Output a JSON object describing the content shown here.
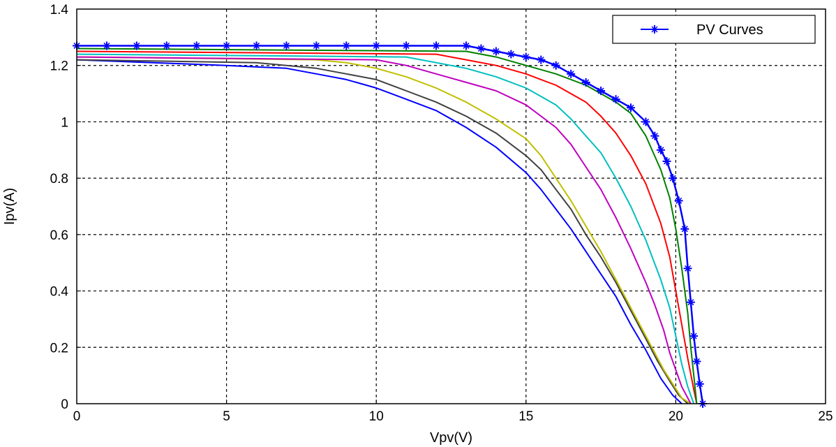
{
  "chart_data": {
    "type": "line",
    "title": "",
    "xlabel": "Vpv(V)",
    "ylabel": "Ipv(A)",
    "xlim": [
      0,
      25
    ],
    "ylim": [
      0,
      1.4
    ],
    "xticks": [
      "0",
      "5",
      "10",
      "15",
      "20",
      "25"
    ],
    "yticks": [
      "0",
      "0.2",
      "0.4",
      "0.6",
      "0.8",
      "1",
      "1.2",
      "1.4"
    ],
    "xtick_values": [
      0,
      5,
      10,
      15,
      20,
      25
    ],
    "ytick_values": [
      0,
      0.2,
      0.4,
      0.6,
      0.8,
      1.0,
      1.2,
      1.4
    ],
    "grid": true,
    "legend_position": "top-right",
    "legend": [
      {
        "label": "PV Curves",
        "color": "#0000ff",
        "marker": "star"
      }
    ],
    "series": [
      {
        "name": "PV Curves",
        "color": "#0000ff",
        "marker": "star",
        "x": [
          0,
          1,
          2,
          3,
          4,
          5,
          6,
          7,
          8,
          9,
          10,
          11,
          12,
          13,
          13.5,
          14,
          14.5,
          15,
          15.5,
          16,
          16.5,
          17,
          17.5,
          18,
          18.5,
          19,
          19.3,
          19.5,
          19.7,
          19.9,
          20.1,
          20.3,
          20.4,
          20.5,
          20.6,
          20.7,
          20.8,
          20.9
        ],
        "y": [
          1.27,
          1.27,
          1.27,
          1.27,
          1.27,
          1.27,
          1.27,
          1.27,
          1.27,
          1.27,
          1.27,
          1.27,
          1.27,
          1.27,
          1.26,
          1.25,
          1.24,
          1.23,
          1.22,
          1.2,
          1.17,
          1.14,
          1.11,
          1.08,
          1.05,
          1.0,
          0.95,
          0.9,
          0.86,
          0.8,
          0.72,
          0.62,
          0.48,
          0.36,
          0.24,
          0.15,
          0.07,
          0.0
        ]
      },
      {
        "color": "#008000",
        "x": [
          0,
          13,
          14,
          15,
          16,
          17,
          18,
          18.5,
          19,
          19.5,
          19.8,
          20.0,
          20.2,
          20.4,
          20.5,
          20.6,
          20.7
        ],
        "y": [
          1.26,
          1.25,
          1.23,
          1.2,
          1.17,
          1.13,
          1.07,
          1.03,
          0.95,
          0.83,
          0.73,
          0.62,
          0.48,
          0.32,
          0.2,
          0.1,
          0.0
        ]
      },
      {
        "color": "#ff0000",
        "x": [
          0,
          12,
          13,
          14,
          15,
          16,
          17,
          17.5,
          18,
          18.5,
          19,
          19.5,
          19.8,
          20.0,
          20.2,
          20.4,
          20.6,
          20.7
        ],
        "y": [
          1.25,
          1.24,
          1.22,
          1.2,
          1.17,
          1.13,
          1.07,
          1.02,
          0.96,
          0.88,
          0.78,
          0.64,
          0.52,
          0.4,
          0.28,
          0.16,
          0.05,
          0.0
        ]
      },
      {
        "color": "#00bfbf",
        "x": [
          0,
          11,
          12,
          13,
          14,
          15,
          16,
          16.5,
          17,
          17.5,
          18,
          18.5,
          19,
          19.5,
          19.8,
          20.0,
          20.2,
          20.4,
          20.6
        ],
        "y": [
          1.24,
          1.23,
          1.21,
          1.19,
          1.16,
          1.12,
          1.06,
          1.01,
          0.95,
          0.89,
          0.8,
          0.7,
          0.58,
          0.44,
          0.34,
          0.24,
          0.14,
          0.06,
          0.0
        ]
      },
      {
        "color": "#bf00bf",
        "x": [
          0,
          10,
          11,
          12,
          13,
          14,
          15,
          16,
          16.5,
          17,
          17.5,
          18,
          18.5,
          19,
          19.3,
          19.6,
          19.8,
          20.0,
          20.2,
          20.4,
          20.5
        ],
        "y": [
          1.23,
          1.22,
          1.2,
          1.17,
          1.14,
          1.11,
          1.06,
          0.98,
          0.92,
          0.84,
          0.76,
          0.66,
          0.55,
          0.43,
          0.35,
          0.26,
          0.18,
          0.12,
          0.06,
          0.02,
          0.0
        ]
      },
      {
        "color": "#bfbf00",
        "x": [
          0,
          8,
          9,
          10,
          11,
          12,
          13,
          14,
          15,
          15.5,
          16,
          16.5,
          17,
          17.5,
          18,
          18.5,
          19,
          19.3,
          19.6,
          19.9,
          20.2,
          20.5
        ],
        "y": [
          1.23,
          1.22,
          1.21,
          1.19,
          1.16,
          1.12,
          1.07,
          1.01,
          0.94,
          0.88,
          0.8,
          0.72,
          0.63,
          0.54,
          0.44,
          0.34,
          0.24,
          0.18,
          0.12,
          0.07,
          0.02,
          0.0
        ]
      },
      {
        "color": "#404040",
        "x": [
          0,
          6,
          8,
          9,
          10,
          11,
          12,
          13,
          14,
          15,
          15.5,
          16,
          16.5,
          17,
          17.5,
          18,
          18.5,
          19,
          19.4,
          19.8,
          20.1,
          20.4
        ],
        "y": [
          1.22,
          1.21,
          1.19,
          1.17,
          1.15,
          1.11,
          1.07,
          1.02,
          0.96,
          0.88,
          0.83,
          0.76,
          0.69,
          0.6,
          0.52,
          0.43,
          0.33,
          0.23,
          0.15,
          0.08,
          0.03,
          0.0
        ]
      },
      {
        "color": "#0000ff",
        "x": [
          0,
          5,
          7,
          8,
          9,
          10,
          11,
          12,
          13,
          14,
          15,
          15.5,
          16,
          16.5,
          17,
          17.5,
          18,
          18.5,
          19,
          19.5,
          19.9,
          20.2
        ],
        "y": [
          1.22,
          1.2,
          1.19,
          1.17,
          1.15,
          1.12,
          1.08,
          1.04,
          0.98,
          0.91,
          0.82,
          0.76,
          0.69,
          0.62,
          0.54,
          0.46,
          0.38,
          0.28,
          0.19,
          0.09,
          0.03,
          0.0
        ]
      }
    ]
  }
}
